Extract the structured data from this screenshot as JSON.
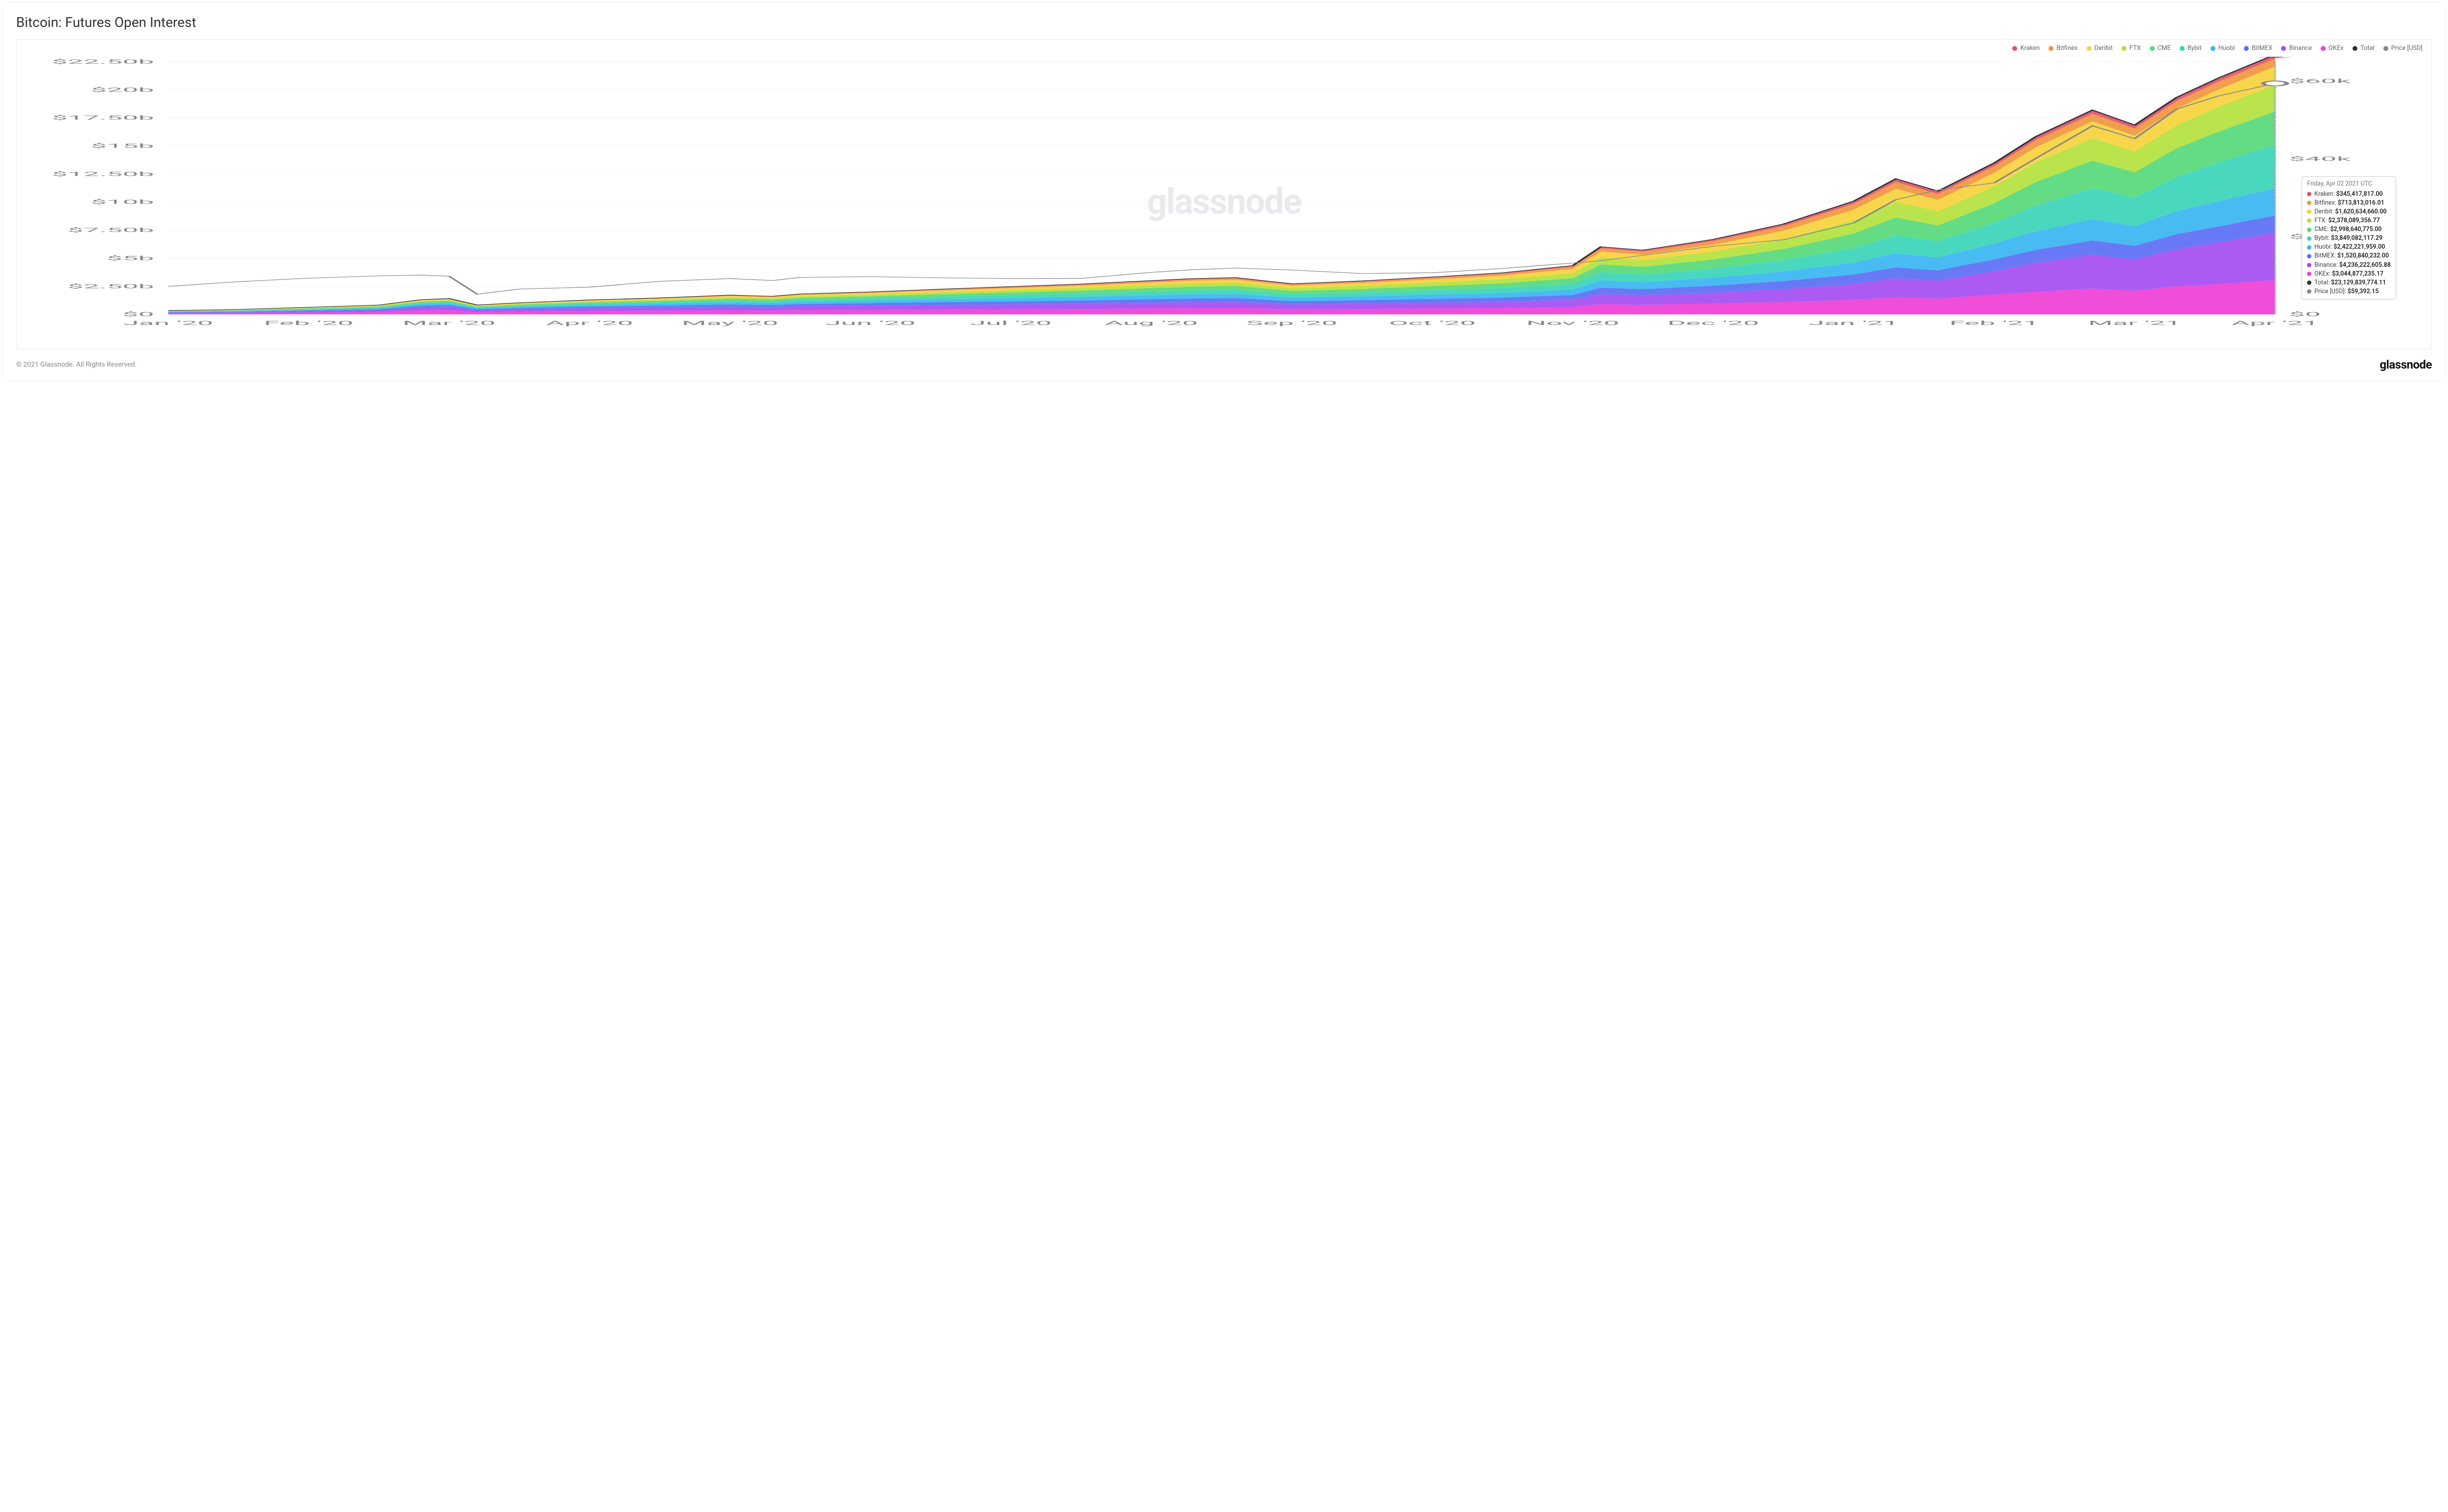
{
  "title": "Bitcoin: Futures Open Interest",
  "watermark": "glassnode",
  "copyright": "© 2021 Glassnode. All Rights Reserved.",
  "brand": "glassnode",
  "chart": {
    "type": "stacked-area-plus-line",
    "background_color": "#ffffff",
    "grid_color": "#f0f1f4",
    "axis_label_color": "#888888",
    "axis_fontsize": 12,
    "watermark_color": "#d0d2d8",
    "left_axis": {
      "min": 0,
      "max": 22500000000,
      "ticks": [
        0,
        2500000000,
        5000000000,
        7500000000,
        10000000000,
        12500000000,
        15000000000,
        17500000000,
        20000000000,
        22500000000
      ],
      "tick_labels": [
        "$0",
        "$2.50b",
        "$5b",
        "$7.50b",
        "$10b",
        "$12.50b",
        "$15b",
        "$17.50b",
        "$20b",
        "$22.50b"
      ]
    },
    "right_axis": {
      "min": 0,
      "max": 65000,
      "ticks": [
        0,
        20000,
        40000,
        60000
      ],
      "tick_labels": [
        "$0",
        "$20k",
        "$40k",
        "$60k"
      ]
    },
    "x_axis": {
      "min": 0,
      "max": 15,
      "tick_labels": [
        "Jan '20",
        "Feb '20",
        "Mar '20",
        "Apr '20",
        "May '20",
        "Jun '20",
        "Jul '20",
        "Aug '20",
        "Sep '20",
        "Oct '20",
        "Nov '20",
        "Dec '20",
        "Jan '21",
        "Feb '21",
        "Mar '21",
        "Apr '21"
      ]
    },
    "legend": [
      {
        "key": "kraken",
        "label": "Kraken",
        "color": "#e2536c"
      },
      {
        "key": "bitfinex",
        "label": "Bitfinex",
        "color": "#f0963e"
      },
      {
        "key": "deribit",
        "label": "Deribit",
        "color": "#f6d33c"
      },
      {
        "key": "ftx",
        "label": "FTX",
        "color": "#b4e23c"
      },
      {
        "key": "cme",
        "label": "CME",
        "color": "#57d97a"
      },
      {
        "key": "bybit",
        "label": "Bybit",
        "color": "#39d5b8"
      },
      {
        "key": "huobi",
        "label": "Huobi",
        "color": "#38b6f1"
      },
      {
        "key": "bitmex",
        "label": "BitMEX",
        "color": "#5b6ef4"
      },
      {
        "key": "binance",
        "label": "Binance",
        "color": "#a44cf1"
      },
      {
        "key": "okex",
        "label": "OKEx",
        "color": "#ef3ed5"
      },
      {
        "key": "total",
        "label": "Total",
        "color": "#333333"
      },
      {
        "key": "price",
        "label": "Price [USD]",
        "color": "#888888"
      }
    ],
    "stack_order_bottom_to_top": [
      "okex",
      "binance",
      "bitmex",
      "huobi",
      "bybit",
      "cme",
      "ftx",
      "deribit",
      "bitfinex",
      "kraken"
    ],
    "x": [
      0,
      0.5,
      1,
      1.5,
      1.8,
      2,
      2.2,
      2.5,
      3,
      3.5,
      4,
      4.3,
      4.5,
      5,
      5.5,
      6,
      6.5,
      7,
      7.3,
      7.6,
      8,
      8.5,
      9,
      9.5,
      10,
      10.2,
      10.5,
      11,
      11.5,
      12,
      12.3,
      12.6,
      13,
      13.3,
      13.7,
      14,
      14.3,
      14.6,
      15
    ],
    "series": {
      "okex": [
        80,
        100,
        150,
        200,
        350,
        380,
        200,
        250,
        300,
        330,
        360,
        340,
        380,
        400,
        430,
        450,
        480,
        520,
        550,
        560,
        450,
        480,
        520,
        560,
        650,
        900,
        850,
        950,
        1100,
        1300,
        1500,
        1400,
        1750,
        2000,
        2300,
        2100,
        2500,
        2700,
        3045
      ],
      "binance": [
        60,
        80,
        120,
        160,
        280,
        300,
        160,
        200,
        250,
        280,
        320,
        300,
        340,
        370,
        400,
        430,
        460,
        500,
        520,
        530,
        430,
        470,
        510,
        550,
        650,
        900,
        850,
        980,
        1150,
        1400,
        1700,
        1600,
        2100,
        2600,
        3000,
        2800,
        3300,
        3700,
        4236
      ],
      "bitmex": [
        50,
        60,
        80,
        100,
        150,
        160,
        100,
        120,
        150,
        170,
        200,
        190,
        210,
        230,
        260,
        280,
        300,
        330,
        350,
        360,
        300,
        320,
        350,
        380,
        430,
        580,
        550,
        620,
        720,
        850,
        980,
        920,
        1050,
        1150,
        1280,
        1200,
        1350,
        1430,
        1521
      ],
      "huobi": [
        40,
        50,
        70,
        90,
        130,
        140,
        90,
        110,
        140,
        160,
        190,
        180,
        200,
        220,
        250,
        280,
        310,
        340,
        360,
        370,
        310,
        340,
        380,
        420,
        480,
        650,
        620,
        720,
        850,
        1050,
        1250,
        1150,
        1400,
        1650,
        1900,
        1750,
        2050,
        2250,
        2422
      ],
      "bybit": [
        30,
        40,
        60,
        80,
        120,
        130,
        80,
        100,
        130,
        150,
        180,
        170,
        190,
        210,
        240,
        270,
        300,
        340,
        360,
        370,
        310,
        340,
        390,
        440,
        520,
        720,
        690,
        820,
        1000,
        1300,
        1600,
        1450,
        1850,
        2300,
        2750,
        2550,
        3050,
        3450,
        3849
      ],
      "cme": [
        25,
        35,
        50,
        65,
        90,
        95,
        65,
        80,
        100,
        120,
        150,
        140,
        160,
        180,
        210,
        240,
        270,
        310,
        330,
        340,
        290,
        320,
        370,
        420,
        500,
        700,
        670,
        800,
        1000,
        1300,
        1600,
        1400,
        1750,
        2100,
        2450,
        2250,
        2550,
        2750,
        2999
      ],
      "ftx": [
        20,
        28,
        40,
        52,
        75,
        80,
        55,
        68,
        85,
        100,
        125,
        115,
        135,
        155,
        180,
        205,
        230,
        265,
        285,
        295,
        250,
        280,
        320,
        370,
        440,
        620,
        590,
        710,
        880,
        1150,
        1400,
        1250,
        1500,
        1750,
        2000,
        1850,
        2050,
        2200,
        2378
      ],
      "deribit": [
        15,
        22,
        32,
        42,
        60,
        65,
        44,
        55,
        70,
        82,
        102,
        94,
        110,
        128,
        150,
        170,
        192,
        220,
        238,
        246,
        210,
        235,
        270,
        310,
        370,
        520,
        495,
        595,
        740,
        960,
        1150,
        1020,
        1200,
        1350,
        1500,
        1400,
        1480,
        1550,
        1621
      ],
      "bitfinex": [
        10,
        14,
        20,
        26,
        36,
        38,
        26,
        32,
        40,
        48,
        58,
        54,
        62,
        72,
        84,
        96,
        108,
        122,
        132,
        136,
        118,
        132,
        150,
        172,
        205,
        290,
        275,
        330,
        410,
        520,
        600,
        530,
        590,
        640,
        680,
        640,
        670,
        695,
        714
      ],
      "kraken": [
        5,
        7,
        10,
        13,
        18,
        19,
        13,
        16,
        20,
        24,
        28,
        26,
        30,
        34,
        40,
        46,
        52,
        58,
        62,
        64,
        56,
        62,
        70,
        80,
        96,
        136,
        130,
        155,
        195,
        248,
        288,
        255,
        285,
        310,
        330,
        310,
        320,
        335,
        345
      ],
      "price": [
        7200,
        8400,
        9300,
        9900,
        10100,
        9800,
        5200,
        6500,
        7000,
        8500,
        9200,
        8700,
        9500,
        9700,
        9400,
        9200,
        9250,
        10800,
        11500,
        11900,
        11400,
        10500,
        10700,
        11800,
        13200,
        13800,
        15200,
        17500,
        19200,
        23500,
        29500,
        32000,
        33800,
        40200,
        48500,
        45200,
        52800,
        56200,
        59392
      ]
    },
    "series_scale": 1000000
  },
  "tooltip": {
    "date": "Friday, Apr 02 2021 UTC",
    "rows": [
      {
        "key": "kraken",
        "label": "Kraken",
        "value": "$345,417,817.00",
        "color": "#e2536c"
      },
      {
        "key": "bitfinex",
        "label": "Bitfinex",
        "value": "$713,813,016.01",
        "color": "#f0963e"
      },
      {
        "key": "deribit",
        "label": "Deribit",
        "value": "$1,620,634,660.00",
        "color": "#f6d33c"
      },
      {
        "key": "ftx",
        "label": "FTX",
        "value": "$2,378,089,356.77",
        "color": "#b4e23c"
      },
      {
        "key": "cme",
        "label": "CME",
        "value": "$2,998,640,775.00",
        "color": "#57d97a"
      },
      {
        "key": "bybit",
        "label": "Bybit",
        "value": "$3,849,082,117.29",
        "color": "#39d5b8"
      },
      {
        "key": "huobi",
        "label": "Huobi",
        "value": "$2,422,221,959.00",
        "color": "#38b6f1"
      },
      {
        "key": "bitmex",
        "label": "BitMEX",
        "value": "$1,520,840,232.00",
        "color": "#5b6ef4"
      },
      {
        "key": "binance",
        "label": "Binance",
        "value": "$4,236,222,605.88",
        "color": "#a44cf1"
      },
      {
        "key": "okex",
        "label": "OKEx",
        "value": "$3,044,877,235.17",
        "color": "#ef3ed5"
      },
      {
        "key": "total",
        "label": "Total",
        "value": "$23,129,839,774.11",
        "color": "#333333"
      },
      {
        "key": "price",
        "label": "Price [USD]",
        "value": "$59,392.15",
        "color": "#888888"
      }
    ]
  }
}
